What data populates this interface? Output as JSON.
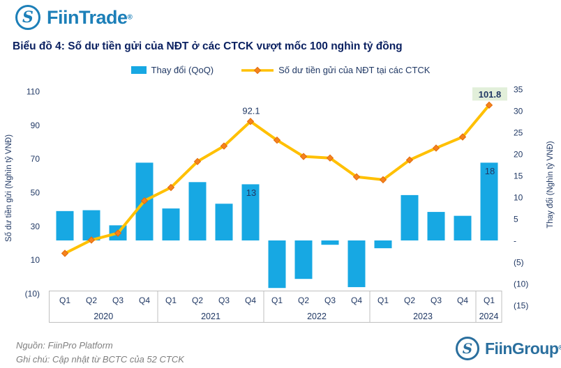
{
  "header": {
    "logo": {
      "brand": "FiinTrade",
      "registered": "®",
      "monogram": "S",
      "color": "#1C7FB8"
    }
  },
  "title": "Biểu đồ 4: Số dư tiền gửi của NĐT ở các CTCK vượt mốc 100 nghìn tỷ đồng",
  "legend": {
    "items": [
      {
        "label": "Thay đổi (QoQ)",
        "type": "bar",
        "color": "#17A8E3"
      },
      {
        "label": "Số dư tiền gửi của NĐT tại các CTCK",
        "type": "line",
        "color": "#FFC000",
        "marker_color": "#F5821F"
      }
    ]
  },
  "chart_data": {
    "type": "bar",
    "subtype": "combo-bar-line-dual-axis",
    "x_groups": [
      {
        "year": "2020",
        "quarters": [
          "Q1",
          "Q2",
          "Q3",
          "Q4"
        ]
      },
      {
        "year": "2021",
        "quarters": [
          "Q1",
          "Q2",
          "Q3",
          "Q4"
        ]
      },
      {
        "year": "2022",
        "quarters": [
          "Q1",
          "Q2",
          "Q3",
          "Q4"
        ]
      },
      {
        "year": "2023",
        "quarters": [
          "Q1",
          "Q2",
          "Q3",
          "Q4"
        ]
      },
      {
        "year": "2024",
        "quarters": [
          "Q1"
        ]
      }
    ],
    "categories": [
      "Q1 2020",
      "Q2 2020",
      "Q3 2020",
      "Q4 2020",
      "Q1 2021",
      "Q2 2021",
      "Q3 2021",
      "Q4 2021",
      "Q1 2022",
      "Q2 2022",
      "Q3 2022",
      "Q4 2022",
      "Q1 2023",
      "Q2 2023",
      "Q3 2023",
      "Q4 2023",
      "Q1 2024"
    ],
    "series": [
      {
        "name": "Thay đổi (QoQ)",
        "type": "bar",
        "axis": "right",
        "color": "#17A8E3",
        "values": [
          6.8,
          7.0,
          3.5,
          18.0,
          7.4,
          13.5,
          8.5,
          13,
          -11.0,
          -8.9,
          -1.0,
          -10.8,
          -1.8,
          10.5,
          6.6,
          5.7,
          18
        ]
      },
      {
        "name": "Số dư tiền gửi của NĐT tại các CTCK",
        "type": "line",
        "axis": "left",
        "color": "#FFC000",
        "marker": "diamond",
        "marker_color": "#F5821F",
        "marker_stroke": "#E36C09",
        "values": [
          13.8,
          21.7,
          25.8,
          45.0,
          52.9,
          68.3,
          77.5,
          92.1,
          81.0,
          71.3,
          70.4,
          59.2,
          57.5,
          69.2,
          76.3,
          82.9,
          101.8
        ]
      }
    ],
    "left_axis": {
      "title": "Số dư tiền gửi (Nghìn tỷ VNĐ)",
      "ticks": [
        110,
        90,
        70,
        50,
        30,
        10,
        -10
      ],
      "range": [
        -10,
        110
      ]
    },
    "right_axis": {
      "title": "Thay đổi (Nghìn tỷ VNĐ)",
      "ticks": [
        35,
        30,
        25,
        20,
        15,
        10,
        5,
        0,
        -5,
        -10,
        -15
      ],
      "range": [
        -15,
        35
      ]
    },
    "data_labels": [
      {
        "series": "line",
        "index": 7,
        "text": "92.1"
      },
      {
        "series": "line",
        "index": 16,
        "text": "101.8",
        "highlight": true,
        "highlight_bg": "#E2EFDA"
      },
      {
        "series": "bar",
        "index": 7,
        "text": "13"
      },
      {
        "series": "bar",
        "index": 16,
        "text": "18"
      }
    ],
    "grid": false,
    "legend_position": "top",
    "text_color": "#203864"
  },
  "footer": {
    "source": "Nguồn: FiinPro Platform",
    "note": "Ghi chú: Cập nhật từ BCTC của 52 CTCK",
    "logo": {
      "brand": "FiinGroup",
      "registered": "®",
      "monogram": "S",
      "color": "#2A6F9E"
    }
  }
}
